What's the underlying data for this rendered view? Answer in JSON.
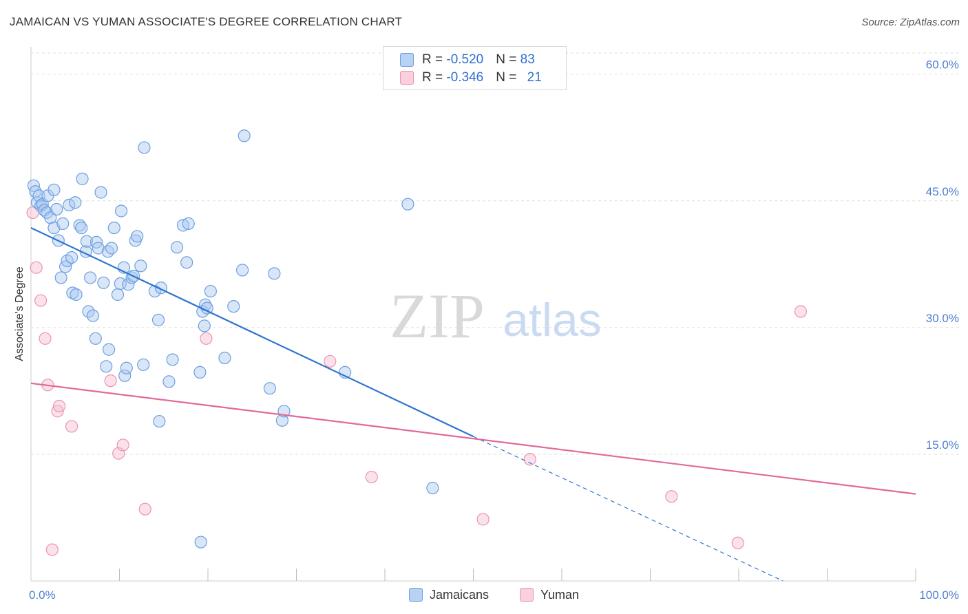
{
  "title": "JAMAICAN VS YUMAN ASSOCIATE'S DEGREE CORRELATION CHART",
  "source": "Source: ZipAtlas.com",
  "watermark": {
    "zip": "ZIP",
    "atlas": "atlas"
  },
  "legend": {
    "rows": [
      {
        "r_label": "R = ",
        "r_value": "-0.520",
        "n_label": "N = ",
        "n_value": "83"
      },
      {
        "r_label": "R = ",
        "r_value": "-0.346",
        "n_label": "N = ",
        "n_value": "21"
      }
    ]
  },
  "bottom_legend": {
    "jamaicans": "Jamaicans",
    "yuman": "Yuman"
  },
  "colors": {
    "blue_fill": "#a9c8f0",
    "blue_stroke": "#6c9fe0",
    "blue_line": "#2f74d0",
    "pink_fill": "#f7bfd0",
    "pink_stroke": "#ec93b0",
    "pink_line": "#e0689a",
    "grid": "#dddddd",
    "axis_text": "#4a7fd0"
  },
  "chart_data": {
    "type": "scatter",
    "title": "JAMAICAN VS YUMAN ASSOCIATE'S DEGREE CORRELATION CHART",
    "xlabel": "",
    "ylabel": "Associate's Degree",
    "xlim": [
      0,
      100
    ],
    "ylim": [
      0,
      62.5
    ],
    "y_ticks": [
      {
        "value": 15,
        "label": "15.0%"
      },
      {
        "value": 30,
        "label": "30.0%"
      },
      {
        "value": 45,
        "label": "45.0%"
      },
      {
        "value": 60,
        "label": "60.0%"
      }
    ],
    "x_tick_labels": {
      "min": "0.0%",
      "max": "100.0%"
    },
    "x_minor_ticks": [
      10,
      20,
      30,
      40,
      50,
      60,
      70,
      80,
      90,
      100
    ],
    "grid": true,
    "series": [
      {
        "name": "Jamaicans",
        "r": -0.52,
        "n": 83,
        "trend": {
          "x0": 0,
          "y0": 41.8,
          "x1": 50,
          "y1": 17.1,
          "dash_to_x": 85,
          "dash_to_y": 0
        },
        "points": [
          [
            0.3,
            46.8
          ],
          [
            0.5,
            46.1
          ],
          [
            0.7,
            44.8
          ],
          [
            0.9,
            45.6
          ],
          [
            1.1,
            44.4
          ],
          [
            1.3,
            44.6
          ],
          [
            1.5,
            43.9
          ],
          [
            1.8,
            43.6
          ],
          [
            1.9,
            45.6
          ],
          [
            2.2,
            43.0
          ],
          [
            2.6,
            41.8
          ],
          [
            2.6,
            46.3
          ],
          [
            2.9,
            44.0
          ],
          [
            3.1,
            40.3
          ],
          [
            3.4,
            35.9
          ],
          [
            3.6,
            42.3
          ],
          [
            3.9,
            37.2
          ],
          [
            4.1,
            37.9
          ],
          [
            4.3,
            44.5
          ],
          [
            4.6,
            38.3
          ],
          [
            4.7,
            34.1
          ],
          [
            5.0,
            44.8
          ],
          [
            5.1,
            33.9
          ],
          [
            5.5,
            42.1
          ],
          [
            5.7,
            41.8
          ],
          [
            5.8,
            47.6
          ],
          [
            6.2,
            39.0
          ],
          [
            6.3,
            40.2
          ],
          [
            6.5,
            31.9
          ],
          [
            6.7,
            35.9
          ],
          [
            7.0,
            31.4
          ],
          [
            7.3,
            28.7
          ],
          [
            7.4,
            40.1
          ],
          [
            7.6,
            39.4
          ],
          [
            7.9,
            46.0
          ],
          [
            8.2,
            35.3
          ],
          [
            8.5,
            25.4
          ],
          [
            8.7,
            39.0
          ],
          [
            8.8,
            27.4
          ],
          [
            9.1,
            39.4
          ],
          [
            9.4,
            41.8
          ],
          [
            9.8,
            33.9
          ],
          [
            10.1,
            35.2
          ],
          [
            10.2,
            43.8
          ],
          [
            10.5,
            37.1
          ],
          [
            10.6,
            24.3
          ],
          [
            10.8,
            25.2
          ],
          [
            11.0,
            35.1
          ],
          [
            11.4,
            35.9
          ],
          [
            11.6,
            36.1
          ],
          [
            11.8,
            40.3
          ],
          [
            12.0,
            40.8
          ],
          [
            12.4,
            37.3
          ],
          [
            12.7,
            25.6
          ],
          [
            12.8,
            51.3
          ],
          [
            14.0,
            34.3
          ],
          [
            14.4,
            30.9
          ],
          [
            14.5,
            18.9
          ],
          [
            14.7,
            34.7
          ],
          [
            15.6,
            23.6
          ],
          [
            16.0,
            26.2
          ],
          [
            16.5,
            39.5
          ],
          [
            17.2,
            42.1
          ],
          [
            17.6,
            37.7
          ],
          [
            17.8,
            42.3
          ],
          [
            19.1,
            24.7
          ],
          [
            19.2,
            4.6
          ],
          [
            19.4,
            31.9
          ],
          [
            19.6,
            30.2
          ],
          [
            19.7,
            32.7
          ],
          [
            19.9,
            32.3
          ],
          [
            20.3,
            34.3
          ],
          [
            21.9,
            26.4
          ],
          [
            22.9,
            32.5
          ],
          [
            23.9,
            36.8
          ],
          [
            24.1,
            52.7
          ],
          [
            27.0,
            22.8
          ],
          [
            27.5,
            36.4
          ],
          [
            28.4,
            19.0
          ],
          [
            28.6,
            20.1
          ],
          [
            35.5,
            24.7
          ],
          [
            42.6,
            44.6
          ],
          [
            45.4,
            11.0
          ]
        ]
      },
      {
        "name": "Yuman",
        "r": -0.346,
        "n": 21,
        "trend": {
          "x0": 0,
          "y0": 23.4,
          "x1": 100,
          "y1": 10.3
        },
        "points": [
          [
            0.2,
            43.6
          ],
          [
            0.6,
            37.1
          ],
          [
            1.1,
            33.2
          ],
          [
            1.6,
            28.7
          ],
          [
            1.9,
            23.2
          ],
          [
            3.0,
            20.1
          ],
          [
            3.2,
            20.7
          ],
          [
            4.6,
            18.3
          ],
          [
            9.0,
            23.7
          ],
          [
            9.9,
            15.1
          ],
          [
            10.4,
            16.1
          ],
          [
            12.9,
            8.5
          ],
          [
            19.8,
            28.7
          ],
          [
            2.4,
            3.7
          ],
          [
            33.8,
            26.0
          ],
          [
            38.5,
            12.3
          ],
          [
            51.1,
            7.3
          ],
          [
            56.4,
            14.4
          ],
          [
            72.4,
            10.0
          ],
          [
            79.9,
            4.5
          ],
          [
            87.0,
            31.9
          ]
        ]
      }
    ]
  }
}
